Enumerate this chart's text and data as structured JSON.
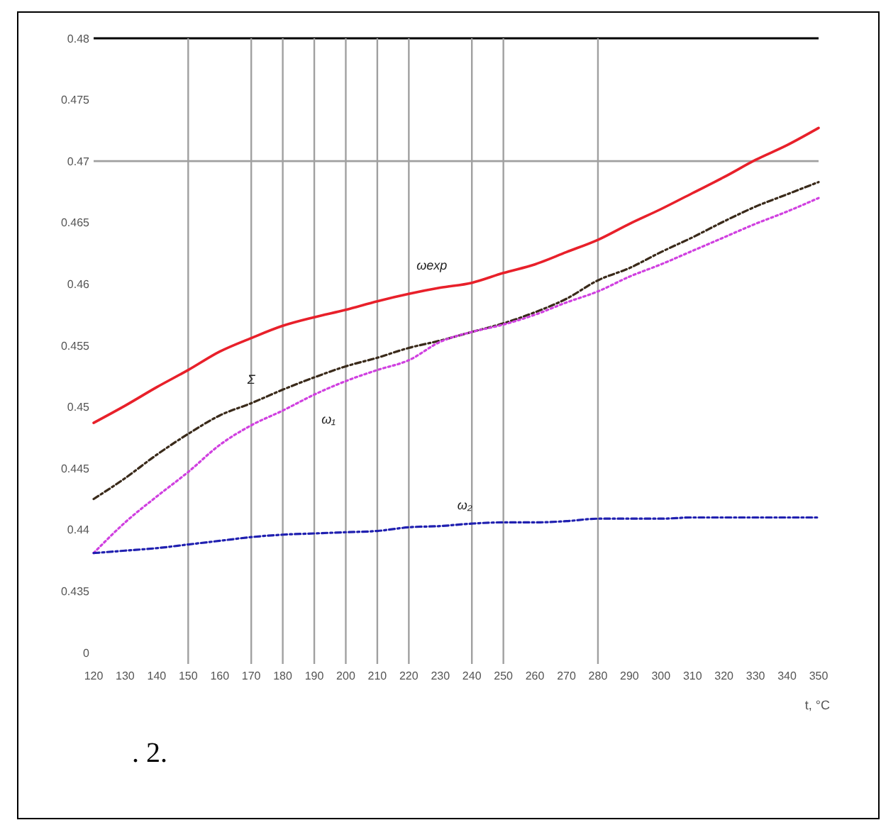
{
  "chart_data": {
    "type": "line",
    "x": [
      120,
      130,
      140,
      150,
      160,
      170,
      180,
      190,
      200,
      210,
      220,
      230,
      240,
      250,
      260,
      270,
      280,
      290,
      300,
      310,
      320,
      330,
      340,
      350
    ],
    "series": [
      {
        "name": "ωexp",
        "color": "#e8202a",
        "line_style": "solid",
        "values": [
          0.4487,
          0.4501,
          0.4516,
          0.453,
          0.4545,
          0.4556,
          0.4566,
          0.4573,
          0.4579,
          0.4586,
          0.4592,
          0.4597,
          0.4601,
          0.4609,
          0.4616,
          0.4626,
          0.4636,
          0.4649,
          0.4661,
          0.4674,
          0.4687,
          0.4701,
          0.4713,
          0.4727
        ]
      },
      {
        "name": "Σ",
        "color": "#3a2a1a",
        "line_style": "dashed",
        "values": [
          0.4425,
          0.4442,
          0.4461,
          0.4478,
          0.4493,
          0.4503,
          0.4514,
          0.4524,
          0.4533,
          0.454,
          0.4548,
          0.4554,
          0.4561,
          0.4568,
          0.4577,
          0.4588,
          0.4603,
          0.4613,
          0.4626,
          0.4638,
          0.4651,
          0.4663,
          0.4673,
          0.4683
        ]
      },
      {
        "name": "ω₁",
        "color": "#d040e0",
        "line_style": "dotted",
        "values": [
          0.4381,
          0.4406,
          0.4427,
          0.4447,
          0.4469,
          0.4485,
          0.4497,
          0.451,
          0.4521,
          0.453,
          0.4538,
          0.4553,
          0.4561,
          0.4567,
          0.4575,
          0.4585,
          0.4594,
          0.4606,
          0.4616,
          0.4627,
          0.4638,
          0.4649,
          0.4659,
          0.467
        ]
      },
      {
        "name": "ω₂",
        "color": "#2020b0",
        "line_style": "dashed",
        "values": [
          0.4381,
          0.4383,
          0.4385,
          0.4388,
          0.4391,
          0.4394,
          0.4396,
          0.4397,
          0.4398,
          0.4399,
          0.4402,
          0.4403,
          0.4405,
          0.4406,
          0.4406,
          0.4407,
          0.4409,
          0.4409,
          0.4409,
          0.441,
          0.441,
          0.441,
          0.441,
          0.441
        ]
      }
    ],
    "xlim": [
      120,
      350
    ],
    "xticks": [
      120,
      130,
      140,
      150,
      160,
      170,
      180,
      190,
      200,
      210,
      220,
      230,
      240,
      250,
      260,
      270,
      280,
      290,
      300,
      310,
      320,
      330,
      340,
      350
    ],
    "ylim": [
      0.43,
      0.48
    ],
    "yticks": [
      {
        "value": 0.43,
        "label": "0"
      },
      0.435,
      0.44,
      0.445,
      0.45,
      0.455,
      0.46,
      0.465,
      0.47,
      0.475,
      0.48
    ],
    "xlabel": "t, °C",
    "marker": "none",
    "ref_lines": [
      {
        "axis": "y",
        "value": 0.48,
        "color": "#000000"
      },
      {
        "axis": "y",
        "value": 0.47,
        "color": "#a0a0a0"
      },
      {
        "axis": "x",
        "value": 150,
        "color": "#a0a0a0"
      },
      {
        "axis": "x",
        "value": 170,
        "color": "#a0a0a0"
      },
      {
        "axis": "x",
        "value": 180,
        "color": "#a0a0a0"
      },
      {
        "axis": "x",
        "value": 190,
        "color": "#a0a0a0"
      },
      {
        "axis": "x",
        "value": 200,
        "color": "#a0a0a0"
      },
      {
        "axis": "x",
        "value": 210,
        "color": "#a0a0a0"
      },
      {
        "axis": "x",
        "value": 220,
        "color": "#a0a0a0"
      },
      {
        "axis": "x",
        "value": 240,
        "color": "#a0a0a0"
      },
      {
        "axis": "x",
        "value": 250,
        "color": "#a0a0a0"
      },
      {
        "axis": "x",
        "value": 280,
        "color": "#a0a0a0"
      }
    ],
    "annotations": [
      ". 2."
    ]
  }
}
